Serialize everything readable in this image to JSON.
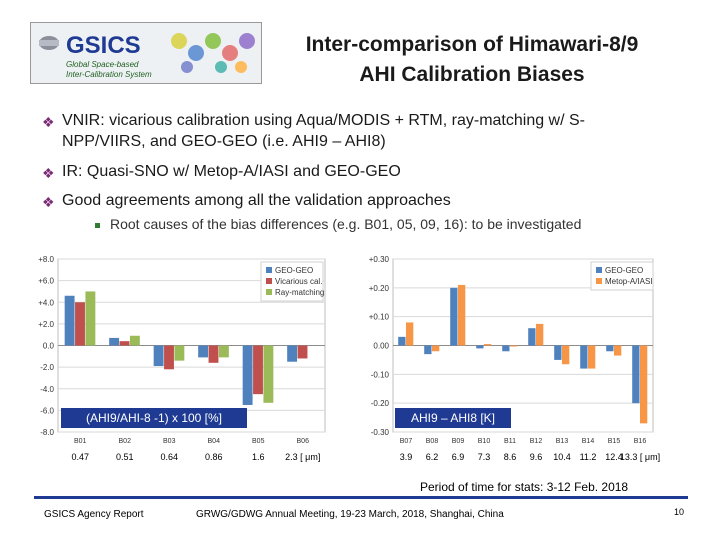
{
  "title_line1": "Inter-comparison of Himawari-8/9",
  "title_line2": "AHI Calibration Biases",
  "logo": {
    "main": "GSICS",
    "line1": "Global Space-based",
    "line2": "Inter-Calibration System"
  },
  "bullets": [
    {
      "line1": "VNIR: vicarious calibration using Aqua/MODIS + RTM, ray-matching w/ S-",
      "line2": "NPP/VIIRS, and GEO-GEO (i.e. AHI9 – AHI8)"
    },
    {
      "line1": "IR: Quasi-SNO w/ Metop-A/IASI and GEO-GEO"
    },
    {
      "line1": "Good agreements among all the validation approaches"
    }
  ],
  "sub_bullet": "Root causes of the bias differences (e.g. B01, 05, 09, 16): to be investigated",
  "colors": {
    "geo": "#4f81bd",
    "vic": "#c0504d",
    "ray": "#9bbb59",
    "iasi": "#f79646",
    "accent": "#1f3a93"
  },
  "chart_data": [
    {
      "type": "bar",
      "categories": [
        "B01",
        "B02",
        "B03",
        "B04",
        "B05",
        "B06"
      ],
      "wavelengths": [
        "0.47",
        "0.51",
        "0.64",
        "0.86",
        "1.6",
        "2.3  [ μm]"
      ],
      "series": [
        {
          "name": "GEO-GEO",
          "values": [
            4.6,
            0.7,
            -1.9,
            -1.1,
            -5.5,
            -1.5
          ]
        },
        {
          "name": "Vicarious cal.",
          "values": [
            4.0,
            0.4,
            -2.2,
            -1.6,
            -4.5,
            -1.2
          ]
        },
        {
          "name": "Ray-matching",
          "values": [
            5.0,
            0.9,
            -1.4,
            -1.1,
            -5.3,
            null
          ]
        }
      ],
      "ylim": [
        -8,
        8
      ],
      "yticks": [
        "+8.0",
        "+6.0",
        "+4.0",
        "+2.0",
        "0.0",
        "-2.0",
        "-4.0",
        "-6.0",
        "-8.0"
      ],
      "annotation": "(AHI9/AHI-8 -1) x 100 [%]"
    },
    {
      "type": "bar",
      "categories": [
        "B07",
        "B08",
        "B09",
        "B10",
        "B11",
        "B12",
        "B13",
        "B14",
        "B15",
        "B16"
      ],
      "wavelengths": [
        "3.9",
        "6.2",
        "6.9",
        "7.3",
        "8.6",
        "9.6",
        "10.4",
        "11.2",
        "12.4",
        "13.3 [ μm]"
      ],
      "series": [
        {
          "name": "GEO-GEO",
          "values": [
            0.03,
            -0.03,
            0.2,
            -0.01,
            -0.02,
            0.06,
            -0.05,
            -0.08,
            -0.02,
            -0.2
          ]
        },
        {
          "name": "Metop-A/IASI",
          "values": [
            0.08,
            -0.02,
            0.21,
            0.005,
            0.0,
            0.075,
            -0.065,
            -0.08,
            -0.035,
            -0.27
          ]
        }
      ],
      "ylim": [
        -0.3,
        0.3
      ],
      "yticks": [
        "+0.30",
        "+0.20",
        "+0.10",
        "0.00",
        "-0.10",
        "-0.20",
        "-0.30"
      ],
      "annotation": "AHI9 – AHI8 [K]"
    }
  ],
  "period": "Period of time for stats: 3-12 Feb. 2018",
  "footer_left": "GSICS Agency Report",
  "footer_center": "GRWG/GDWG Annual Meeting, 19-23 March, 2018, Shanghai, China",
  "page_number": "10"
}
